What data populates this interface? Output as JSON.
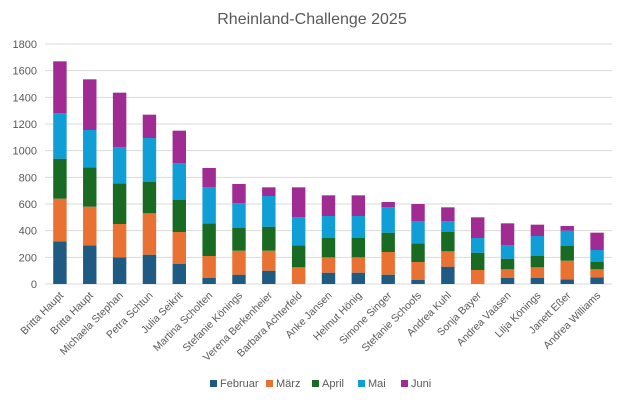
{
  "chart_data": {
    "type": "bar",
    "stacked": true,
    "title": "Rheinland-Challenge 2025",
    "xlabel": "",
    "ylabel": "",
    "ylim": [
      0,
      1800
    ],
    "yticks": [
      0,
      200,
      400,
      600,
      800,
      1000,
      1200,
      1400,
      1600,
      1800
    ],
    "grid": true,
    "legend": "bottom",
    "categories": [
      "Britta Haupt",
      "Britta Haupt",
      "Michaela Stephan",
      "Petra Schtun",
      "Julia Seikrit",
      "Martina Scholten",
      "Stefanie Könings",
      "Verena Berkenheier",
      "Barbara Achterfeld",
      "Anke Jansen",
      "Helmut Hönig",
      "Simone Singer",
      "Stefanie Schoofs",
      "Andrea Kuhl",
      "Sonja Bayer",
      "Andrea Vaasen",
      "Lilja Könings",
      "Janett Eßer",
      "Andrea Williams"
    ],
    "series": [
      {
        "name": "Februar",
        "color": "#1f5a82",
        "values": [
          320,
          290,
          200,
          220,
          150,
          45,
          70,
          100,
          0,
          85,
          85,
          70,
          30,
          130,
          0,
          45,
          45,
          35,
          50
        ]
      },
      {
        "name": "März",
        "color": "#e97132",
        "values": [
          320,
          290,
          250,
          310,
          240,
          165,
          180,
          150,
          125,
          115,
          115,
          170,
          135,
          115,
          105,
          65,
          80,
          140,
          60
        ]
      },
      {
        "name": "April",
        "color": "#196b24",
        "values": [
          300,
          295,
          305,
          235,
          240,
          245,
          170,
          180,
          165,
          145,
          145,
          145,
          140,
          145,
          130,
          80,
          85,
          110,
          55
        ]
      },
      {
        "name": "Mai",
        "color": "#0f9ed5",
        "values": [
          340,
          280,
          270,
          330,
          275,
          270,
          185,
          230,
          210,
          165,
          165,
          190,
          165,
          80,
          110,
          100,
          150,
          115,
          90
        ]
      },
      {
        "name": "Juni",
        "color": "#a02b93",
        "values": [
          390,
          380,
          410,
          175,
          245,
          145,
          145,
          65,
          225,
          155,
          155,
          40,
          130,
          105,
          155,
          165,
          85,
          35,
          130
        ]
      }
    ]
  }
}
